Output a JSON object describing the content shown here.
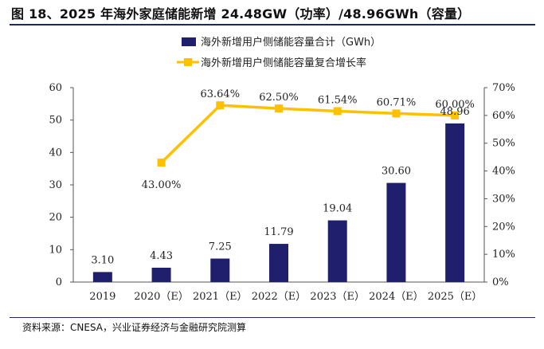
{
  "figure": {
    "title": "图 18、2025 年海外家庭储能新增 24.48GW（功率）/48.96GWh（容量）",
    "source": "资料来源：CNESA，兴业证券经济与金融研究院测算"
  },
  "chart_data": {
    "type": "bar+line",
    "categories": [
      "2019",
      "2020（E）",
      "2021（E）",
      "2022（E）",
      "2023（E）",
      "2024（E）",
      "2025（E）"
    ],
    "series": [
      {
        "name": "海外新增用户侧储能容量合计（GWh）",
        "type": "bar",
        "axis": "left",
        "color": "#1f1f6e",
        "values": [
          3.1,
          4.43,
          7.25,
          11.79,
          19.04,
          30.6,
          48.96
        ],
        "labels": [
          "3.10",
          "4.43",
          "7.25",
          "11.79",
          "19.04",
          "30.60",
          "48.96"
        ]
      },
      {
        "name": "海外新增用户侧储能容量复合增长率",
        "type": "line",
        "axis": "right",
        "color": "#ffc000",
        "values": [
          null,
          43.0,
          63.64,
          62.5,
          61.54,
          60.71,
          60.0
        ],
        "labels": [
          "",
          "43.00%",
          "63.64%",
          "62.50%",
          "61.54%",
          "60.71%",
          "60.00%"
        ]
      }
    ],
    "y_left": {
      "min": 0,
      "max": 60,
      "ticks": [
        "0",
        "10",
        "20",
        "30",
        "40",
        "50",
        "60"
      ]
    },
    "y_right": {
      "min": 0,
      "max": 70,
      "ticks": [
        "0%",
        "10%",
        "20%",
        "30%",
        "40%",
        "50%",
        "60%",
        "70%"
      ]
    },
    "legend_position": "top-center"
  }
}
